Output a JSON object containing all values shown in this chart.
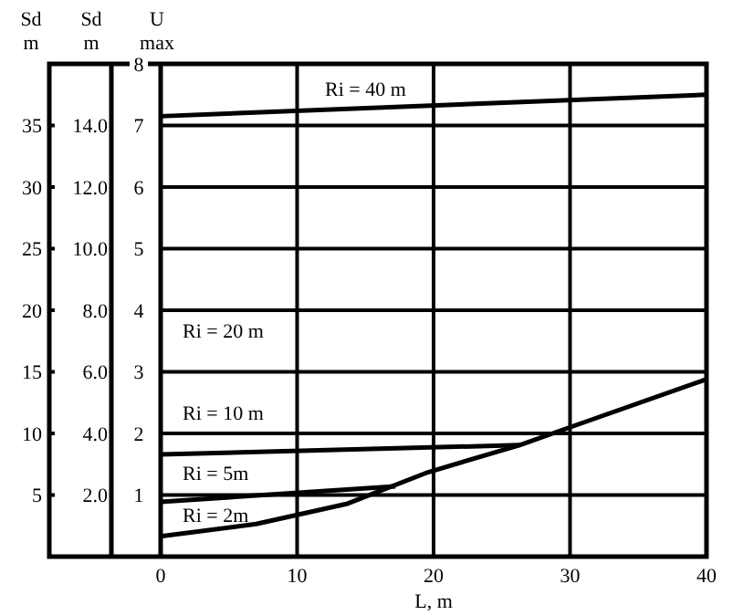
{
  "chart_data": {
    "type": "line",
    "xlabel": "L, m",
    "ylabel": "U max",
    "y2label": "Sd m",
    "y3label": "Sd m",
    "xlim": [
      0,
      40
    ],
    "xticks": [
      0,
      10,
      20,
      30,
      40
    ],
    "ylim": [
      0,
      8
    ],
    "yticks": [
      1,
      2,
      3,
      4,
      5,
      6,
      7,
      8
    ],
    "y2lim": [
      0,
      16
    ],
    "y2ticks": [
      {
        "value": 2,
        "label": "2.0"
      },
      {
        "value": 4,
        "label": "4.0"
      },
      {
        "value": 6,
        "label": "6.0"
      },
      {
        "value": 8,
        "label": "8.0"
      },
      {
        "value": 10,
        "label": "10.0"
      },
      {
        "value": 12,
        "label": "12.0"
      },
      {
        "value": 14,
        "label": "14.0"
      }
    ],
    "y3lim": [
      0,
      40
    ],
    "y3ticks": [
      5,
      10,
      15,
      20,
      25,
      30,
      35
    ],
    "grid": true,
    "marker": "none",
    "line_style": "solid",
    "annotations": [
      "Ri = 20 m"
    ],
    "series": [
      {
        "name": "Ri = 40 m",
        "color": "#000000",
        "x": [
          0,
          40
        ],
        "values": [
          7.15,
          7.5
        ]
      },
      {
        "name": "Ri = 10 m",
        "color": "#000000",
        "x": [
          0,
          26.3
        ],
        "values": [
          1.66,
          1.81
        ]
      },
      {
        "name": "Ri = 5m",
        "color": "#000000",
        "x": [
          0,
          17.2
        ],
        "values": [
          0.89,
          1.14
        ]
      },
      {
        "name": "Ri = 2m",
        "color": "#000000",
        "x": [
          0,
          7,
          13.7,
          19.6,
          26.3,
          30,
          40
        ],
        "values": [
          0.33,
          0.53,
          0.86,
          1.37,
          1.81,
          2.1,
          2.88
        ]
      }
    ]
  }
}
